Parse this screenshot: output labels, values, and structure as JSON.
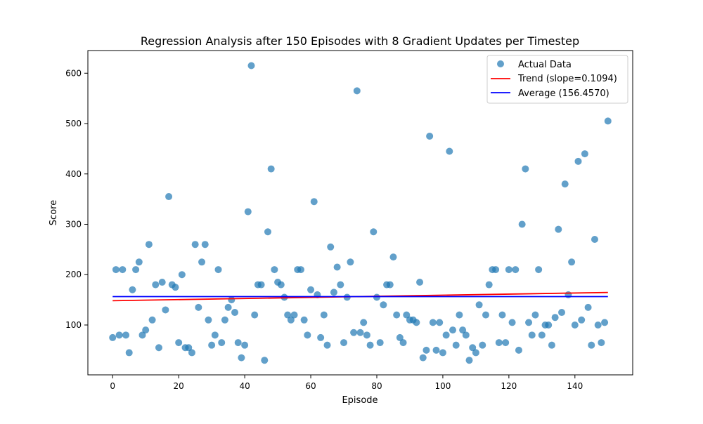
{
  "chart_data": {
    "type": "scatter",
    "title": "Regression Analysis after 150 Episodes with 8 Gradient Updates per Timestep",
    "xlabel": "Episode",
    "ylabel": "Score",
    "xlim": [
      -7.5,
      157.5
    ],
    "ylim": [
      1,
      645
    ],
    "xticks": [
      0,
      20,
      40,
      60,
      80,
      100,
      120,
      140
    ],
    "yticks": [
      100,
      200,
      300,
      400,
      500,
      600
    ],
    "legend_position": "top-right",
    "grid": false,
    "series": [
      {
        "name": "Actual Data",
        "kind": "scatter",
        "color": "#1f77b4",
        "x": [
          0,
          1,
          2,
          3,
          4,
          5,
          6,
          7,
          8,
          9,
          10,
          11,
          12,
          13,
          14,
          15,
          16,
          17,
          18,
          19,
          20,
          21,
          22,
          23,
          24,
          25,
          26,
          27,
          28,
          29,
          30,
          31,
          32,
          33,
          34,
          35,
          36,
          37,
          38,
          39,
          40,
          41,
          42,
          43,
          44,
          45,
          46,
          47,
          48,
          49,
          50,
          51,
          52,
          53,
          54,
          55,
          56,
          57,
          58,
          59,
          60,
          61,
          62,
          63,
          64,
          65,
          66,
          67,
          68,
          69,
          70,
          71,
          72,
          73,
          74,
          75,
          76,
          77,
          78,
          79,
          80,
          81,
          82,
          83,
          84,
          85,
          86,
          87,
          88,
          89,
          90,
          91,
          92,
          93,
          94,
          95,
          96,
          97,
          98,
          99,
          100,
          101,
          102,
          103,
          104,
          105,
          106,
          107,
          108,
          109,
          110,
          111,
          112,
          113,
          114,
          115,
          116,
          117,
          118,
          119,
          120,
          121,
          122,
          123,
          124,
          125,
          126,
          127,
          128,
          129,
          130,
          131,
          132,
          133,
          134,
          135,
          136,
          137,
          138,
          139,
          140,
          141,
          142,
          143,
          144,
          145,
          146,
          147,
          148,
          149,
          150
        ],
        "y": [
          75,
          210,
          80,
          210,
          80,
          45,
          170,
          210,
          225,
          80,
          90,
          260,
          110,
          180,
          55,
          185,
          130,
          355,
          180,
          175,
          65,
          200,
          55,
          55,
          45,
          260,
          135,
          225,
          260,
          110,
          60,
          80,
          210,
          65,
          110,
          135,
          150,
          125,
          65,
          35,
          60,
          325,
          615,
          120,
          180,
          180,
          30,
          285,
          410,
          210,
          185,
          180,
          155,
          120,
          110,
          120,
          210,
          210,
          110,
          80,
          170,
          345,
          160,
          75,
          120,
          60,
          255,
          165,
          215,
          180,
          65,
          155,
          225,
          85,
          565,
          85,
          105,
          80,
          60,
          285,
          155,
          65,
          140,
          180,
          180,
          235,
          120,
          75,
          65,
          120,
          110,
          110,
          105,
          185,
          35,
          50,
          475,
          105,
          50,
          105,
          45,
          80,
          445,
          90,
          60,
          120,
          90,
          80,
          30,
          55,
          45,
          140,
          60,
          120,
          180,
          210,
          210,
          65,
          120,
          65,
          210,
          105,
          210,
          50,
          300,
          410,
          105,
          80,
          120,
          210,
          80,
          100,
          100,
          60,
          115,
          290,
          125,
          380,
          160,
          225,
          100,
          425,
          110,
          440,
          135,
          60,
          270,
          100,
          65,
          105,
          505
        ]
      },
      {
        "name": "Trend (slope=0.1094)",
        "kind": "line",
        "color": "#ff0000",
        "x": [
          0,
          150
        ],
        "y": [
          148.25,
          164.66
        ]
      },
      {
        "name": "Average (156.4570)",
        "kind": "line",
        "color": "#0000ff",
        "x": [
          0,
          150
        ],
        "y": [
          156.457,
          156.457
        ]
      }
    ]
  }
}
